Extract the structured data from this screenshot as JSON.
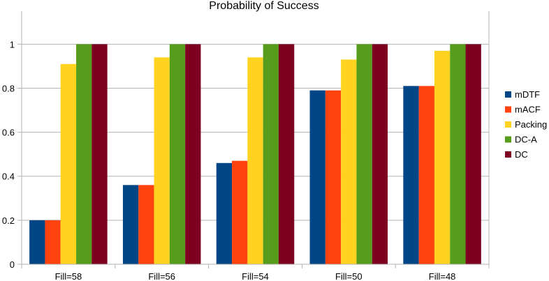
{
  "chart_data": {
    "type": "bar",
    "title": "Probability of Success",
    "xlabel": "",
    "ylabel": "",
    "ylim": [
      0,
      1.15
    ],
    "yticks": [
      0,
      0.2,
      0.4,
      0.6,
      0.8,
      1
    ],
    "ytick_labels": [
      "0",
      "0.2",
      "0.4",
      "0.6",
      "0.8",
      "1"
    ],
    "grid": true,
    "legend_position": "right",
    "categories": [
      "Fill=58",
      "Fill=56",
      "Fill=54",
      "Fill=50",
      "Fill=48"
    ],
    "series": [
      {
        "name": "mDTF",
        "color": "#004586",
        "values": [
          0.2,
          0.36,
          0.46,
          0.79,
          0.81
        ]
      },
      {
        "name": "mACF",
        "color": "#ff420e",
        "values": [
          0.2,
          0.36,
          0.47,
          0.79,
          0.81
        ]
      },
      {
        "name": "Packing",
        "color": "#ffd320",
        "values": [
          0.91,
          0.94,
          0.94,
          0.93,
          0.97
        ]
      },
      {
        "name": "DC-A",
        "color": "#579d1c",
        "values": [
          1,
          1,
          1,
          1,
          1
        ]
      },
      {
        "name": "DC",
        "color": "#7e0021",
        "values": [
          1,
          1,
          1,
          1,
          1
        ]
      }
    ]
  }
}
